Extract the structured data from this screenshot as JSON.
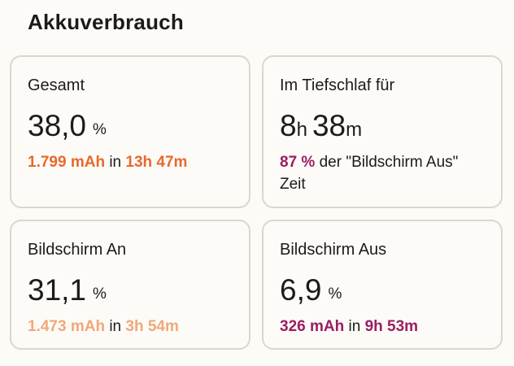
{
  "section_title": "Akkuverbrauch",
  "colors": {
    "orange": "#e8692d",
    "light_orange": "#f0a87a",
    "magenta": "#9a1e63"
  },
  "cards": {
    "total": {
      "label": "Gesamt",
      "value": "38,0",
      "unit": "%",
      "mah": "1.799 mAh",
      "connector": "in",
      "duration": "13h 47m"
    },
    "deep_sleep": {
      "label": "Im Tiefschlaf für",
      "hours": "8",
      "hours_unit": "h",
      "minutes": "38",
      "minutes_unit": "m",
      "percent": "87 %",
      "text": "der \"Bildschirm Aus\" Zeit"
    },
    "screen_on": {
      "label": "Bildschirm An",
      "value": "31,1",
      "unit": "%",
      "mah": "1.473 mAh",
      "connector": "in",
      "duration": "3h 54m"
    },
    "screen_off": {
      "label": "Bildschirm Aus",
      "value": "6,9",
      "unit": "%",
      "mah": "326 mAh",
      "connector": "in",
      "duration": "9h 53m"
    }
  }
}
